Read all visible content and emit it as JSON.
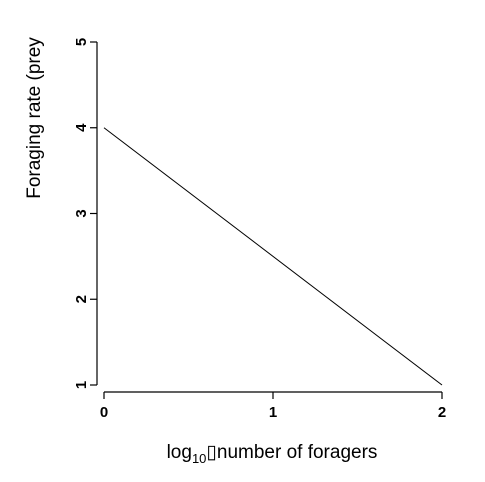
{
  "chart_data": {
    "type": "line",
    "x": [
      0,
      2
    ],
    "series": [
      {
        "values": [
          4,
          1
        ]
      }
    ],
    "xlim": [
      0,
      2
    ],
    "ylim": [
      1,
      5
    ],
    "xticks": [
      "0",
      "1",
      "2"
    ],
    "yticks": [
      "1",
      "2",
      "3",
      "4",
      "5"
    ],
    "xlabel": {
      "prefix": "log",
      "subscript": "10",
      "box_glyph": "▯",
      "rest": "number of foragers"
    },
    "ylabel": "Foraging rate (prey",
    "grid": false,
    "legend": "none"
  }
}
